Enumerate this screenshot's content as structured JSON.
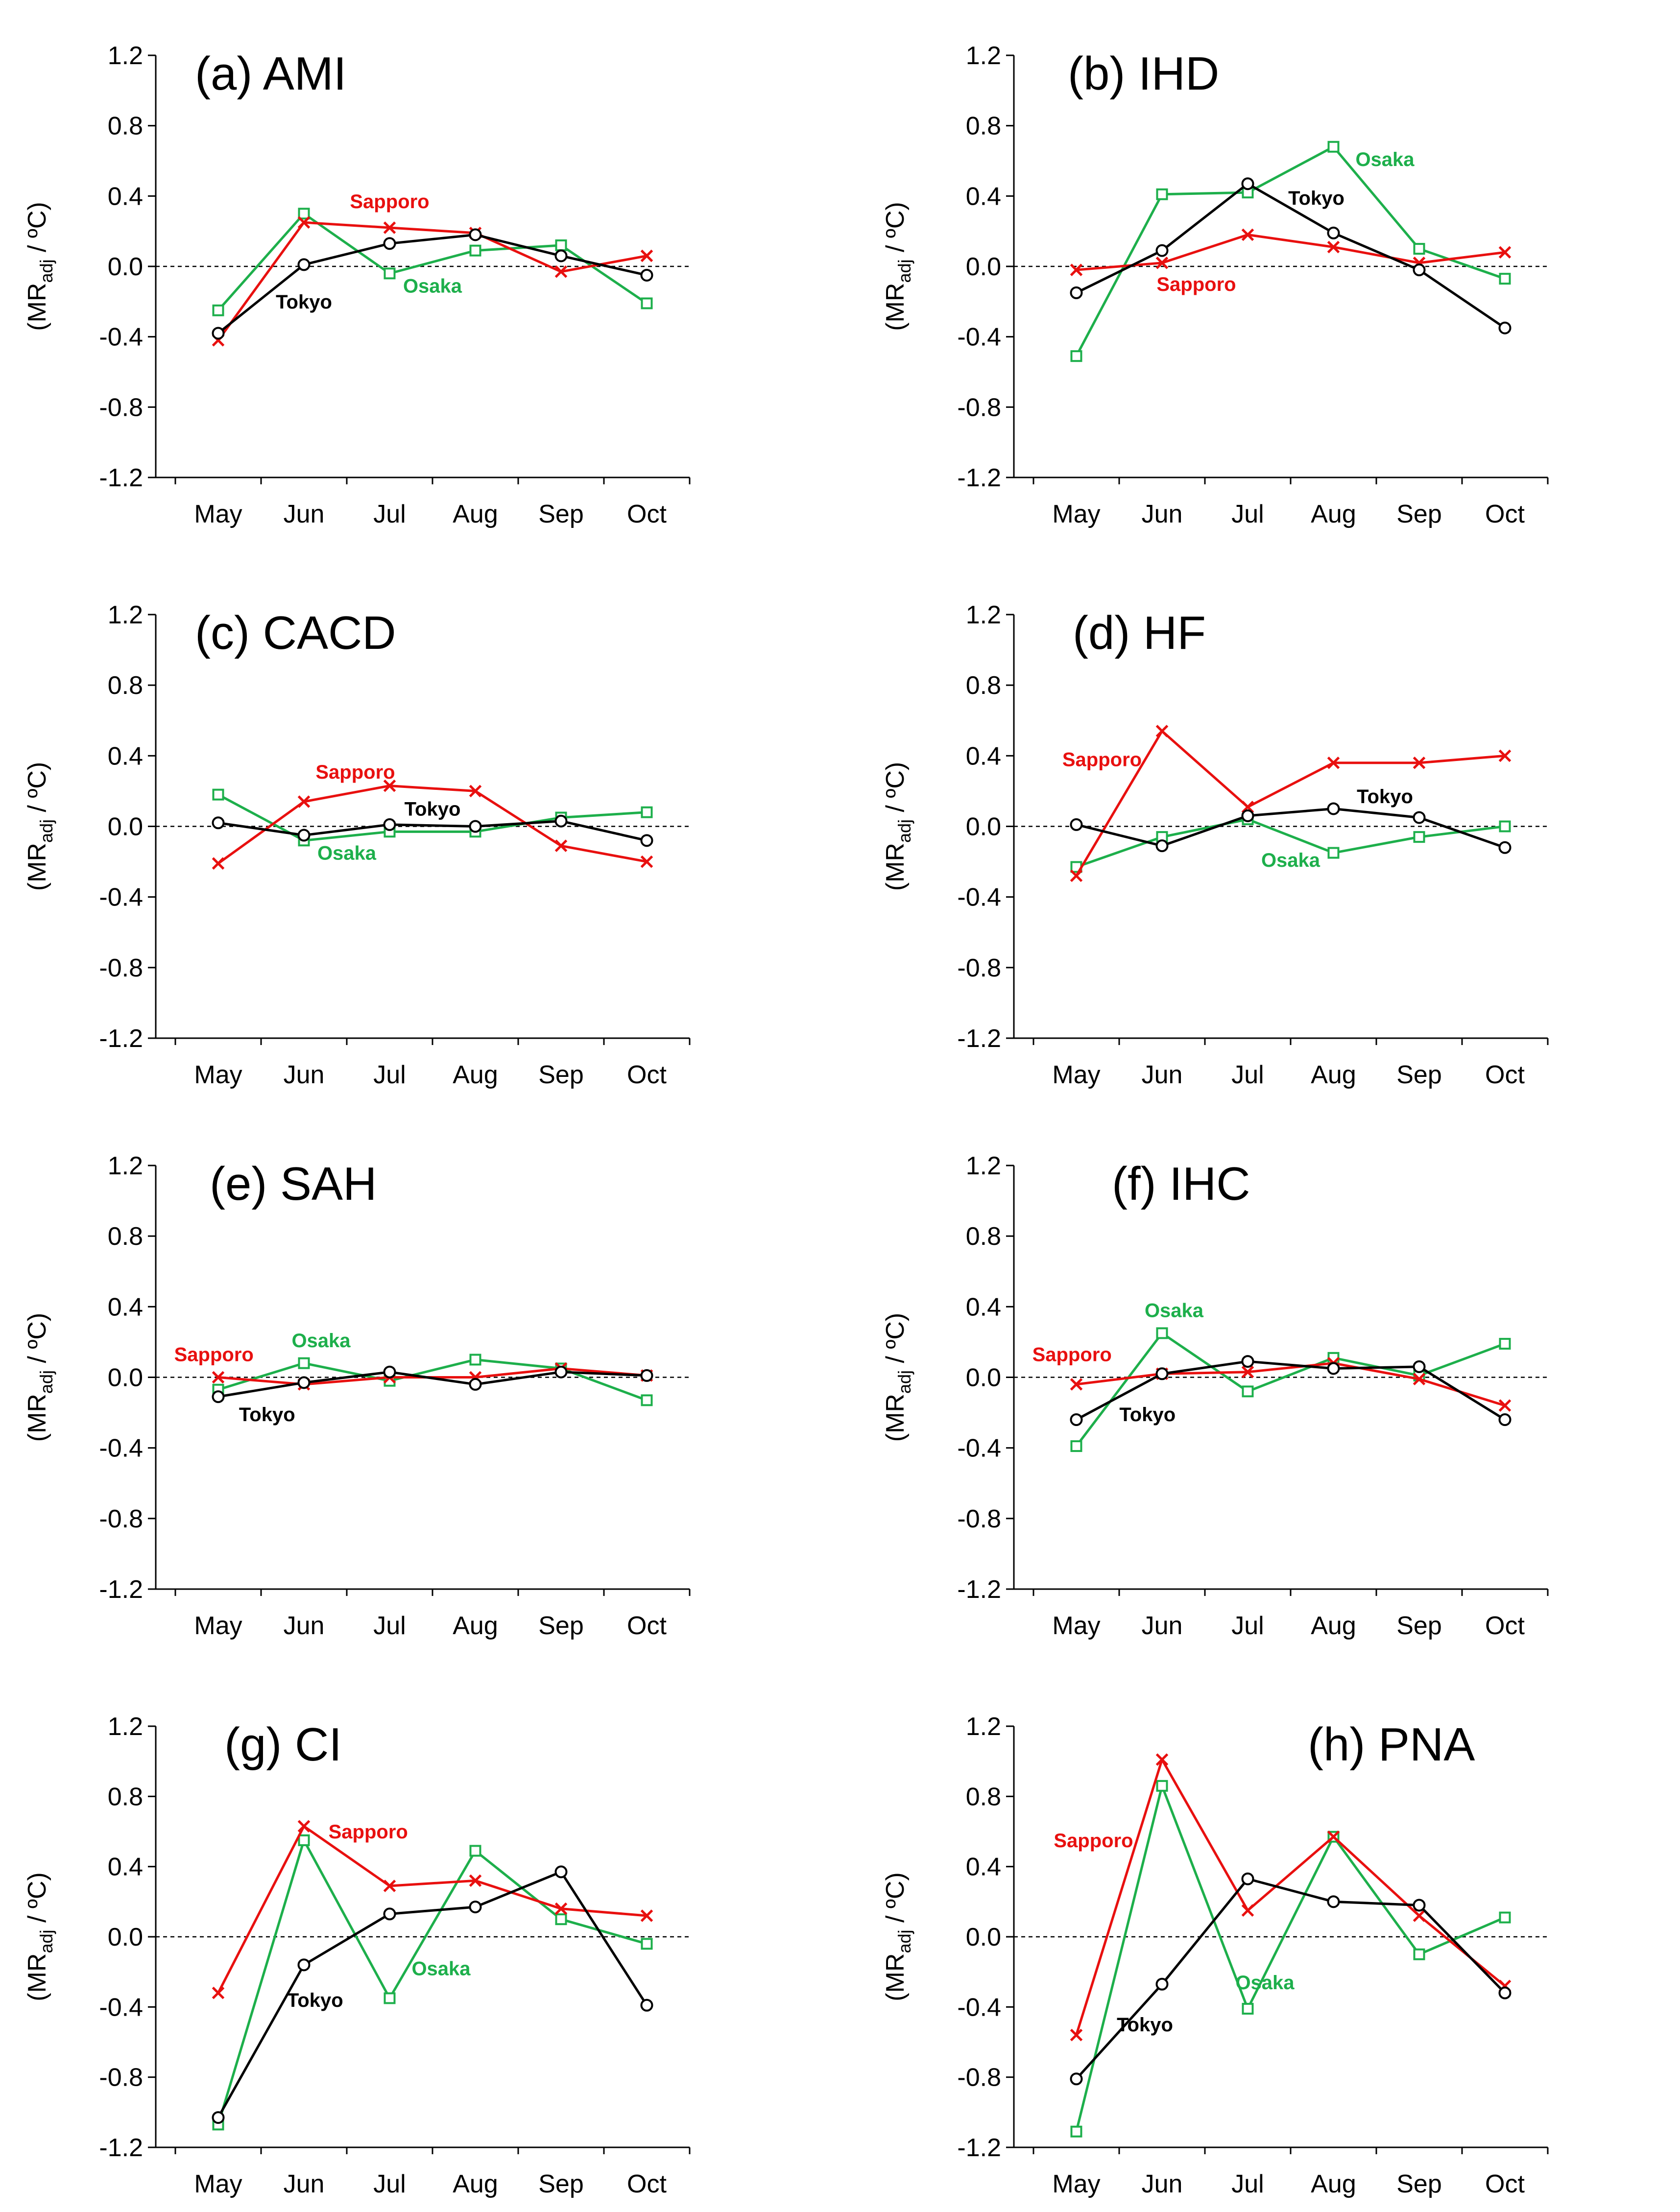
{
  "colors": {
    "Tokyo": "#000000",
    "Sapporo": "#e8100f",
    "Osaka": "#1daf4b"
  },
  "markers": {
    "Tokyo": "circle",
    "Sapporo": "cross",
    "Osaka": "square"
  },
  "ylabel": {
    "prefix": "(MR",
    "sub": "adj",
    "suffix": " / ºC)"
  },
  "chart_data": [
    {
      "type": "line",
      "title": "(a)  AMI",
      "categories": [
        "May",
        "Jun",
        "Jul",
        "Aug",
        "Sep",
        "Oct"
      ],
      "ylim": [
        -1.2,
        1.2
      ],
      "yticks": [
        "1.2",
        "0.8",
        "0.4",
        "0.0",
        "-0.4",
        "-0.8",
        "-1.2"
      ],
      "series": [
        {
          "name": "Sapporo",
          "values": [
            -0.42,
            0.25,
            0.22,
            0.19,
            -0.03,
            0.06
          ]
        },
        {
          "name": "Tokyo",
          "values": [
            -0.38,
            0.01,
            0.13,
            0.18,
            0.06,
            -0.05
          ]
        },
        {
          "name": "Osaka",
          "values": [
            -0.25,
            0.3,
            -0.04,
            0.09,
            0.12,
            -0.21
          ]
        }
      ],
      "annotations": [
        {
          "text": "Sapporo",
          "series": "Sapporo",
          "anchor": [
            2.0,
            0.37
          ]
        },
        {
          "text": "Tokyo",
          "series": "Tokyo",
          "anchor": [
            1.0,
            -0.2
          ]
        },
        {
          "text": "Osaka",
          "series": "Osaka",
          "anchor": [
            2.5,
            -0.11
          ]
        }
      ]
    },
    {
      "type": "line",
      "title": "(b)  IHD",
      "categories": [
        "May",
        "Jun",
        "Jul",
        "Aug",
        "Sep",
        "Oct"
      ],
      "ylim": [
        -1.2,
        1.2
      ],
      "yticks": [
        "1.2",
        "0.8",
        "0.4",
        "0.0",
        "-0.4",
        "-0.8",
        "-1.2"
      ],
      "series": [
        {
          "name": "Sapporo",
          "values": [
            -0.02,
            0.02,
            0.18,
            0.11,
            0.02,
            0.08
          ]
        },
        {
          "name": "Tokyo",
          "values": [
            -0.15,
            0.09,
            0.47,
            0.19,
            -0.02,
            -0.35
          ]
        },
        {
          "name": "Osaka",
          "values": [
            -0.51,
            0.41,
            0.42,
            0.68,
            0.1,
            -0.07
          ]
        }
      ],
      "annotations": [
        {
          "text": "Sapporo",
          "series": "Sapporo",
          "anchor": [
            1.4,
            -0.1
          ]
        },
        {
          "text": "Tokyo",
          "series": "Tokyo",
          "anchor": [
            2.8,
            0.39
          ]
        },
        {
          "text": "Osaka",
          "series": "Osaka",
          "anchor": [
            3.6,
            0.61
          ]
        }
      ]
    },
    {
      "type": "line",
      "title": "(c)  CACD",
      "categories": [
        "May",
        "Jun",
        "Jul",
        "Aug",
        "Sep",
        "Oct"
      ],
      "ylim": [
        -1.2,
        1.2
      ],
      "yticks": [
        "1.2",
        "0.8",
        "0.4",
        "0.0",
        "-0.4",
        "-0.8",
        "-1.2"
      ],
      "series": [
        {
          "name": "Sapporo",
          "values": [
            -0.21,
            0.14,
            0.23,
            0.2,
            -0.11,
            -0.2
          ]
        },
        {
          "name": "Tokyo",
          "values": [
            0.02,
            -0.05,
            0.01,
            0.0,
            0.03,
            -0.08
          ]
        },
        {
          "name": "Osaka",
          "values": [
            0.18,
            -0.08,
            -0.03,
            -0.03,
            0.05,
            0.08
          ]
        }
      ],
      "annotations": [
        {
          "text": "Sapporo",
          "series": "Sapporo",
          "anchor": [
            1.6,
            0.31
          ]
        },
        {
          "text": "Tokyo",
          "series": "Tokyo",
          "anchor": [
            2.5,
            0.1
          ]
        },
        {
          "text": "Osaka",
          "series": "Osaka",
          "anchor": [
            1.5,
            -0.15
          ]
        }
      ]
    },
    {
      "type": "line",
      "title": "(d)  HF",
      "categories": [
        "May",
        "Jun",
        "Jul",
        "Aug",
        "Sep",
        "Oct"
      ],
      "ylim": [
        -1.2,
        1.2
      ],
      "yticks": [
        "1.2",
        "0.8",
        "0.4",
        "0.0",
        "-0.4",
        "-0.8",
        "-1.2"
      ],
      "series": [
        {
          "name": "Sapporo",
          "values": [
            -0.28,
            0.54,
            0.11,
            0.36,
            0.36,
            0.4
          ]
        },
        {
          "name": "Tokyo",
          "values": [
            0.01,
            -0.11,
            0.06,
            0.1,
            0.05,
            -0.12
          ]
        },
        {
          "name": "Osaka",
          "values": [
            -0.23,
            -0.06,
            0.04,
            -0.15,
            -0.06,
            0.0
          ]
        }
      ],
      "annotations": [
        {
          "text": "Sapporo",
          "series": "Sapporo",
          "anchor": [
            0.3,
            0.38
          ]
        },
        {
          "text": "Tokyo",
          "series": "Tokyo",
          "anchor": [
            3.6,
            0.17
          ]
        },
        {
          "text": "Osaka",
          "series": "Osaka",
          "anchor": [
            2.5,
            -0.19
          ]
        }
      ]
    },
    {
      "type": "line",
      "title": "(e)  SAH",
      "categories": [
        "May",
        "Jun",
        "Jul",
        "Aug",
        "Sep",
        "Oct"
      ],
      "ylim": [
        -1.2,
        1.2
      ],
      "yticks": [
        "1.2",
        "0.8",
        "0.4",
        "0.0",
        "-0.4",
        "-0.8",
        "-1.2"
      ],
      "series": [
        {
          "name": "Sapporo",
          "values": [
            0.0,
            -0.04,
            0.0,
            0.0,
            0.05,
            0.01
          ]
        },
        {
          "name": "Tokyo",
          "values": [
            -0.11,
            -0.03,
            0.03,
            -0.04,
            0.03,
            0.01
          ]
        },
        {
          "name": "Osaka",
          "values": [
            -0.07,
            0.08,
            -0.02,
            0.1,
            0.05,
            -0.13
          ]
        }
      ],
      "annotations": [
        {
          "text": "Sapporo",
          "series": "Sapporo",
          "anchor": [
            -0.05,
            0.13
          ]
        },
        {
          "text": "Tokyo",
          "series": "Tokyo",
          "anchor": [
            0.57,
            -0.21
          ]
        },
        {
          "text": "Osaka",
          "series": "Osaka",
          "anchor": [
            1.2,
            0.21
          ]
        }
      ]
    },
    {
      "type": "line",
      "title": "(f)  IHC",
      "categories": [
        "May",
        "Jun",
        "Jul",
        "Aug",
        "Sep",
        "Oct"
      ],
      "ylim": [
        -1.2,
        1.2
      ],
      "yticks": [
        "1.2",
        "0.8",
        "0.4",
        "0.0",
        "-0.4",
        "-0.8",
        "-1.2"
      ],
      "series": [
        {
          "name": "Sapporo",
          "values": [
            -0.04,
            0.02,
            0.03,
            0.08,
            -0.01,
            -0.16
          ]
        },
        {
          "name": "Tokyo",
          "values": [
            -0.24,
            0.02,
            0.09,
            0.05,
            0.06,
            -0.24
          ]
        },
        {
          "name": "Osaka",
          "values": [
            -0.39,
            0.25,
            -0.08,
            0.11,
            0.01,
            0.19
          ]
        }
      ],
      "annotations": [
        {
          "text": "Sapporo",
          "series": "Sapporo",
          "anchor": [
            -0.05,
            0.13
          ]
        },
        {
          "text": "Tokyo",
          "series": "Tokyo",
          "anchor": [
            0.83,
            -0.21
          ]
        },
        {
          "text": "Osaka",
          "series": "Osaka",
          "anchor": [
            1.14,
            0.38
          ]
        }
      ]
    },
    {
      "type": "line",
      "title": "(g)  CI",
      "categories": [
        "May",
        "Jun",
        "Jul",
        "Aug",
        "Sep",
        "Oct"
      ],
      "ylim": [
        -1.2,
        1.2
      ],
      "yticks": [
        "1.2",
        "0.8",
        "0.4",
        "0.0",
        "-0.4",
        "-0.8",
        "-1.2"
      ],
      "series": [
        {
          "name": "Sapporo",
          "values": [
            -0.32,
            0.63,
            0.29,
            0.32,
            0.16,
            0.12
          ]
        },
        {
          "name": "Tokyo",
          "values": [
            -1.03,
            -0.16,
            0.13,
            0.17,
            0.37,
            -0.39
          ]
        },
        {
          "name": "Osaka",
          "values": [
            -1.07,
            0.55,
            -0.35,
            0.49,
            0.1,
            -0.04
          ]
        }
      ],
      "annotations": [
        {
          "text": "Sapporo",
          "series": "Sapporo",
          "anchor": [
            1.75,
            0.6
          ]
        },
        {
          "text": "Tokyo",
          "series": "Tokyo",
          "anchor": [
            1.13,
            -0.36
          ]
        },
        {
          "text": "Osaka",
          "series": "Osaka",
          "anchor": [
            2.6,
            -0.18
          ]
        }
      ]
    },
    {
      "type": "line",
      "title": "(h)  PNA",
      "categories": [
        "May",
        "Jun",
        "Jul",
        "Aug",
        "Sep",
        "Oct"
      ],
      "ylim": [
        -1.2,
        1.2
      ],
      "yticks": [
        "1.2",
        "0.8",
        "0.4",
        "0.0",
        "-0.4",
        "-0.8",
        "-1.2"
      ],
      "series": [
        {
          "name": "Sapporo",
          "values": [
            -0.56,
            1.01,
            0.15,
            0.57,
            0.12,
            -0.28
          ]
        },
        {
          "name": "Tokyo",
          "values": [
            -0.81,
            -0.27,
            0.33,
            0.2,
            0.18,
            -0.32
          ]
        },
        {
          "name": "Osaka",
          "values": [
            -1.11,
            0.86,
            -0.41,
            0.57,
            -0.1,
            0.11
          ]
        }
      ],
      "annotations": [
        {
          "text": "Sapporo",
          "series": "Sapporo",
          "anchor": [
            0.2,
            0.55
          ]
        },
        {
          "text": "Tokyo",
          "series": "Tokyo",
          "anchor": [
            0.8,
            -0.5
          ]
        },
        {
          "text": "Osaka",
          "series": "Osaka",
          "anchor": [
            2.2,
            -0.26
          ]
        }
      ]
    }
  ]
}
